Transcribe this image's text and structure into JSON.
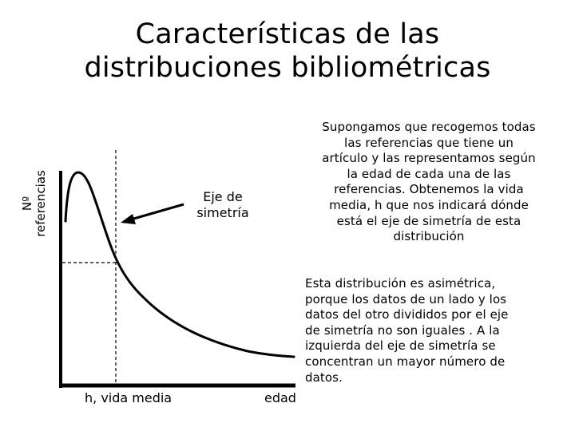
{
  "title": {
    "line1": "Características de las",
    "line2": "distribuciones bibliométricas"
  },
  "diagram": {
    "y_axis_label": {
      "line1": "Nº",
      "line2": "referencias"
    },
    "x_axis_label": "edad",
    "mean_label": "h, vida media",
    "symmetry_axis_label": {
      "line1": "Eje de",
      "line2": "simetría"
    },
    "colors": {
      "axes": "#000000",
      "curve": "#000000",
      "dashed_lines": "#000000"
    }
  },
  "description_top": {
    "lines": [
      "Supongamos que recogemos todas",
      "las referencias que tiene un",
      "artículo y las representamos según",
      "la edad de cada una de las",
      "referencias. Obtenemos la vida",
      "media, h  que nos indicará dónde",
      "está el eje de simetría de esta",
      "distribución"
    ]
  },
  "description_bottom": {
    "lines": [
      "Esta  distribución es asimétrica,",
      "porque los datos de un lado y  los",
      "datos del otro  divididos por el eje",
      "de simetría no son iguales . A la",
      "izquierda del eje de simetría se",
      "concentran un mayor número de",
      "datos."
    ]
  }
}
